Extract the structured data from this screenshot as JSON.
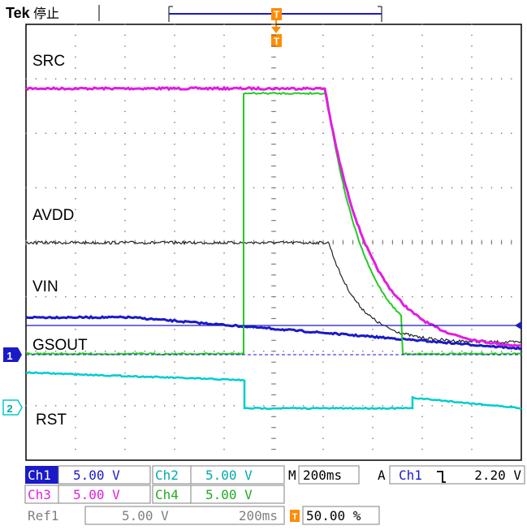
{
  "header": {
    "brand": "Tek",
    "run_state": "停止",
    "trigger_marker": "T",
    "trigger_position_marker": "T"
  },
  "colors": {
    "ch1": "#1a1ac8",
    "ch2": "#00cccc",
    "ch3": "#e01ee0",
    "ch4": "#22cc22",
    "ref1": "#808080",
    "ref_trace": "#222222",
    "grid": "#888888",
    "trigger_orange": "#ff8c00"
  },
  "labels": {
    "src": "SRC",
    "avdd": "AVDD",
    "vin": "VIN",
    "gsout": "GSOUT",
    "rst": "RST"
  },
  "channel_markers": {
    "ch1": "1",
    "ch2": "2"
  },
  "readout": {
    "ch1": {
      "name": "Ch1",
      "scale": "5.00 V"
    },
    "ch2": {
      "name": "Ch2",
      "scale": "5.00 V"
    },
    "ch3": {
      "name": "Ch3",
      "scale": "5.00 V"
    },
    "ch4": {
      "name": "Ch4",
      "scale": "5.00 V"
    },
    "ref1": {
      "name": "Ref1",
      "scale": "5.00 V",
      "time": "200ms"
    },
    "horizontal": {
      "prefix": "M",
      "value": "200ms"
    },
    "trigger": {
      "prefix": "A",
      "source": "Ch1",
      "slope_icon": "falling-edge-icon",
      "slope_glyph": "˥̲",
      "level": "2.20 V"
    },
    "trigger_position": {
      "marker": "T",
      "value": "50.00 %"
    }
  }
}
